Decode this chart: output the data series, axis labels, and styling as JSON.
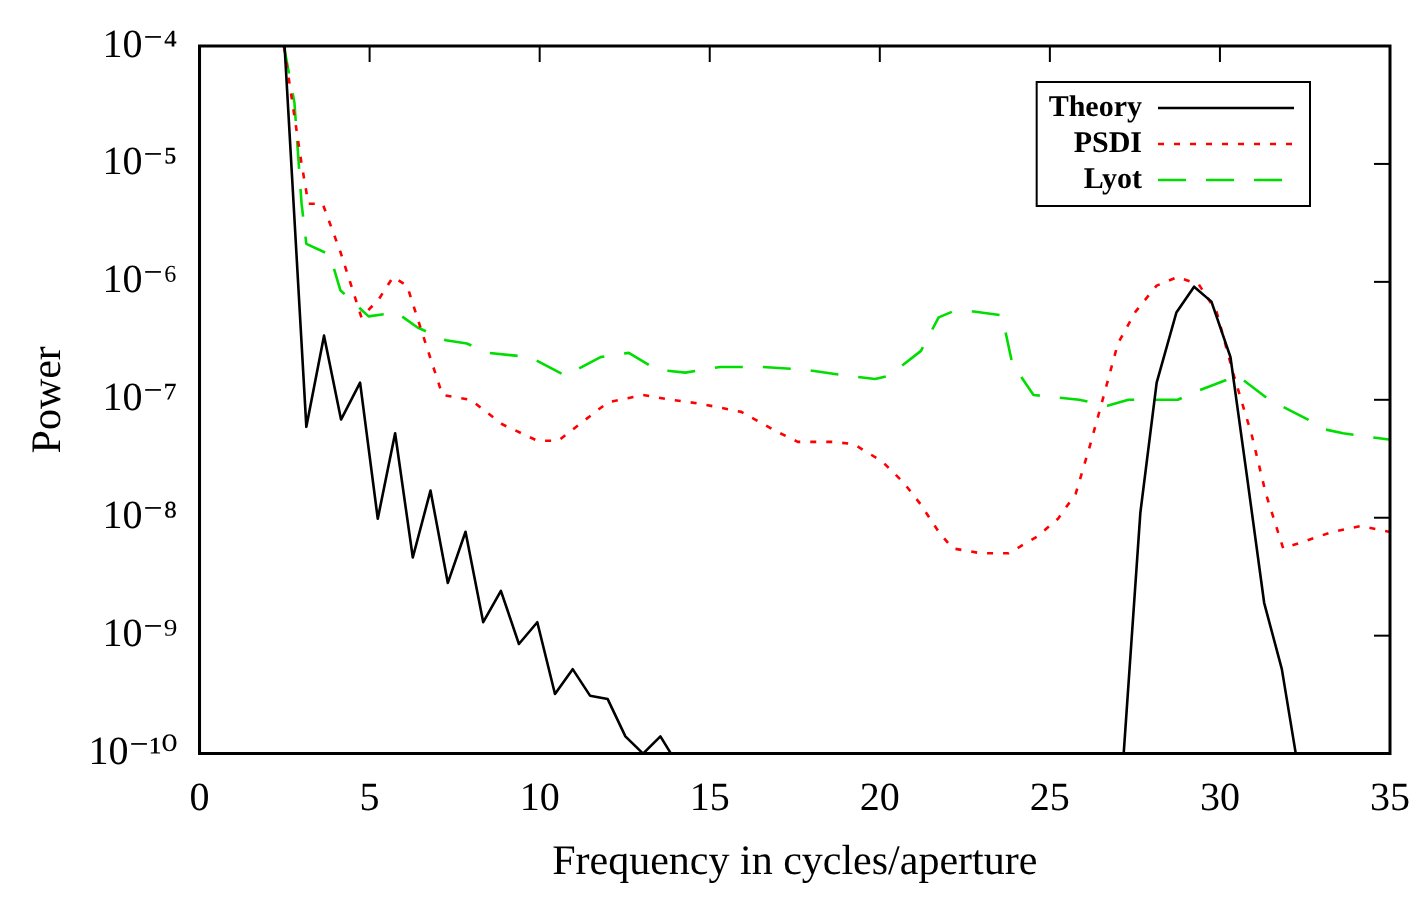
{
  "chart_data": {
    "type": "line",
    "xlabel": "Frequency in cycles/aperture",
    "ylabel": "Power",
    "log": "y",
    "grid": false,
    "legend": "top right",
    "marker": "none",
    "xlim": [
      0,
      35
    ],
    "xticks": [
      0,
      5,
      10,
      15,
      20,
      25,
      30,
      35
    ],
    "ylim": [
      1e-10,
      0.0001
    ],
    "yticks": [
      {
        "value": 1e-10,
        "label": "10⁻¹⁰"
      },
      {
        "value": 1e-09,
        "label": "10⁻⁹"
      },
      {
        "value": 1e-08,
        "label": "10⁻⁸"
      },
      {
        "value": 1e-07,
        "label": "10⁻⁷"
      },
      {
        "value": 1e-06,
        "label": "10⁻⁶"
      },
      {
        "value": 1e-05,
        "label": "10⁻⁵"
      },
      {
        "value": 0.0001,
        "label": "10⁻⁴"
      }
    ],
    "series": [
      {
        "name": "Theory",
        "color": "#000000",
        "line_style": "solid",
        "x": [
          2.5,
          3.14,
          3.66,
          4.16,
          4.72,
          5.24,
          5.75,
          6.27,
          6.79,
          7.3,
          7.82,
          8.34,
          8.86,
          9.39,
          9.93,
          10.45,
          10.97,
          11.48,
          12.0,
          12.52,
          13.04,
          13.55,
          13.86,
          20,
          27.17,
          27.66,
          28.14,
          28.72,
          29.24,
          29.75,
          30.31,
          30.79,
          31.3,
          31.82,
          32.23
        ],
        "values": [
          0.0001,
          5.9e-08,
          3.5e-07,
          6.8e-08,
          1.4e-07,
          9.8e-09,
          5.2e-08,
          4.6e-09,
          1.7e-08,
          2.8e-09,
          7.6e-09,
          1.3e-09,
          2.4e-09,
          8.5e-10,
          1.3e-09,
          3.2e-10,
          5.2e-10,
          3.1e-10,
          2.9e-10,
          1.4e-10,
          1e-10,
          1.4e-10,
          1e-10,
          null,
          1e-10,
          1.1e-08,
          1.4e-07,
          5.5e-07,
          9.1e-07,
          6.8e-07,
          2.3e-07,
          2.3e-08,
          1.9e-09,
          5.2e-10,
          1e-10
        ]
      },
      {
        "name": "PSDI",
        "color": "#ff0000",
        "line_style": "dotted",
        "x": [
          2.48,
          3.0,
          3.2,
          3.62,
          4.14,
          4.76,
          5.28,
          5.69,
          6.1,
          6.52,
          7.14,
          7.97,
          8.9,
          9.93,
          10.55,
          11.17,
          12.0,
          13.04,
          13.86,
          14.69,
          15.93,
          16.96,
          17.59,
          18.62,
          19.24,
          20.07,
          20.69,
          21.2,
          21.73,
          22.14,
          22.97,
          23.79,
          24.62,
          25.24,
          25.76,
          26.17,
          26.59,
          27.0,
          27.52,
          28.14,
          28.76,
          29.38,
          29.9,
          30.41,
          30.93,
          31.35,
          31.86,
          32.48,
          33.31,
          34.14,
          34.97
        ],
        "values": [
          0.0001,
          1e-05,
          4.6e-06,
          4.6e-06,
          1.8e-06,
          5e-07,
          7.2e-07,
          1.1e-06,
          9.3e-07,
          3.9e-07,
          1.1e-07,
          1e-07,
          6.2e-08,
          4.5e-08,
          4.5e-08,
          6.2e-08,
          9.5e-08,
          1.1e-07,
          1e-07,
          9.3e-08,
          7.9e-08,
          5.4e-08,
          4.4e-08,
          4.4e-08,
          4.2e-08,
          3e-08,
          2e-08,
          1.3e-08,
          7.6e-09,
          5.5e-09,
          5e-09,
          5e-09,
          6.9e-09,
          9.8e-09,
          1.6e-08,
          4e-08,
          1.1e-07,
          3e-07,
          5.6e-07,
          9.3e-07,
          1.1e-06,
          9.5e-07,
          5.6e-07,
          1.6e-07,
          5.1e-08,
          1.6e-08,
          5.5e-09,
          6.3e-09,
          7.6e-09,
          8.5e-09,
          7.6e-09
        ]
      },
      {
        "name": "Lyot",
        "color": "#00dd00",
        "line_style": "dashed",
        "x": [
          2.48,
          2.79,
          3.0,
          3.14,
          3.83,
          4.14,
          4.97,
          5.79,
          6.41,
          7.24,
          7.86,
          8.48,
          9.72,
          10.76,
          11.79,
          12.62,
          13.45,
          14.28,
          15.31,
          16.55,
          17.79,
          19.03,
          19.86,
          20.28,
          21.21,
          21.73,
          22.14,
          22.76,
          23.59,
          23.9,
          24.52,
          25.86,
          26.69,
          27.31,
          28.76,
          29.38,
          30.52,
          31.45,
          32.59,
          33.1,
          33.62,
          34.97
        ],
        "values": [
          0.0001,
          3.3e-05,
          4.6e-06,
          2.1e-06,
          1.7e-06,
          8.5e-07,
          5.1e-07,
          5.5e-07,
          4.1e-07,
          3.2e-07,
          3e-07,
          2.5e-07,
          2.3e-07,
          1.6e-07,
          2.3e-07,
          2.5e-07,
          1.8e-07,
          1.7e-07,
          1.9e-07,
          1.9e-07,
          1.8e-07,
          1.6e-07,
          1.5e-07,
          1.6e-07,
          2.6e-07,
          5e-07,
          5.6e-07,
          5.6e-07,
          5.2e-07,
          2e-07,
          1.1e-07,
          1e-07,
          8.9e-08,
          1e-07,
          1e-07,
          1.2e-07,
          1.6e-07,
          1e-07,
          6.8e-08,
          5.6e-08,
          5.2e-08,
          4.6e-08
        ]
      }
    ]
  }
}
